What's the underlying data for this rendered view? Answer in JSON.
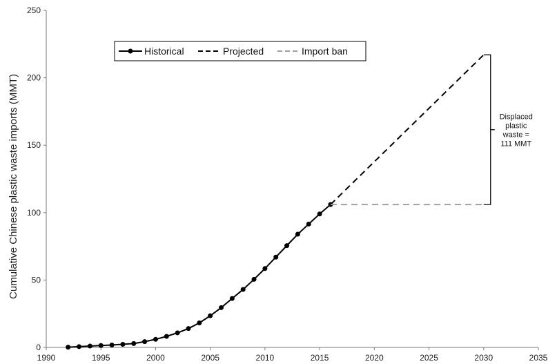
{
  "chart_data": {
    "type": "line",
    "title": "",
    "xlabel": "",
    "ylabel": "Cumulative Chinese plastic waste imports (MMT)",
    "xlim": [
      1990,
      2035
    ],
    "ylim": [
      0,
      250
    ],
    "x_ticks": [
      1990,
      1995,
      2000,
      2005,
      2010,
      2015,
      2020,
      2025,
      2030,
      2035
    ],
    "y_ticks": [
      0,
      50,
      100,
      150,
      200,
      250
    ],
    "grid": false,
    "legend": {
      "placement": "top-left",
      "entries": [
        "Historical",
        "Projected",
        "Import ban"
      ]
    },
    "series": [
      {
        "name": "Historical",
        "style": "solid-with-markers",
        "color": "#000000",
        "x": [
          1992,
          1993,
          1994,
          1995,
          1996,
          1997,
          1998,
          1999,
          2000,
          2001,
          2002,
          2003,
          2004,
          2005,
          2006,
          2007,
          2008,
          2009,
          2010,
          2011,
          2012,
          2013,
          2014,
          2015,
          2016
        ],
        "y": [
          0.2,
          0.6,
          1.0,
          1.4,
          1.8,
          2.3,
          2.9,
          4.3,
          6.0,
          8.2,
          10.8,
          14.0,
          18.2,
          23.5,
          29.5,
          36.3,
          43.0,
          50.5,
          58.5,
          67.0,
          75.5,
          84.0,
          91.5,
          99.0,
          106.0
        ]
      },
      {
        "name": "Projected",
        "style": "dashed",
        "color": "#000000",
        "x": [
          2016,
          2030
        ],
        "y": [
          106.0,
          217.0
        ]
      },
      {
        "name": "Import ban",
        "style": "dashed",
        "color": "#a0a0a0",
        "x": [
          2016,
          2030
        ],
        "y": [
          106.0,
          106.0
        ]
      }
    ],
    "annotation": {
      "lines": [
        "Displaced",
        "plastic",
        "waste =",
        "111 MMT"
      ],
      "x": 2030,
      "y_range": [
        106.0,
        217.0
      ]
    }
  }
}
